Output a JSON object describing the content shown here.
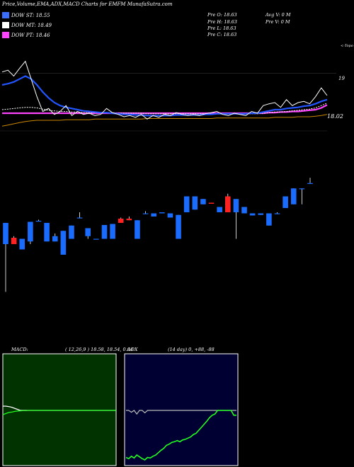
{
  "header": {
    "title": "Price,Volume,EMA,ADX,MACD Charts for EMFM MunafaSutra.com",
    "legend": [
      {
        "label": "DOW ST: 18.55",
        "color": "#3b6dff"
      },
      {
        "label": "DOW MT: 18.49",
        "color": "#ffffff"
      },
      {
        "label": "DOW PT: 18.46",
        "color": "#ff44ff"
      }
    ],
    "pv": {
      "prev_open": "Pre   O: 18.63",
      "prev_high": "Pre   H: 18.63",
      "prev_low": "Pre   L: 18.63",
      "prev_close": "Pre   C: 18.63",
      "avg_vol": "Avg V: 0   M",
      "prev_vol": "Pre   V: 0   M"
    }
  },
  "price_panel": {
    "label_top": "<-Topo",
    "label_19": "19",
    "label_last": "18.02",
    "ylim": [
      17.6,
      19.4
    ],
    "lines": {
      "close": [
        19.02,
        19.05,
        18.95,
        19.08,
        19.2,
        18.9,
        18.6,
        18.35,
        18.4,
        18.3,
        18.35,
        18.45,
        18.28,
        18.35,
        18.3,
        18.32,
        18.28,
        18.3,
        18.4,
        18.33,
        18.3,
        18.26,
        18.28,
        18.25,
        18.3,
        18.22,
        18.28,
        18.25,
        18.3,
        18.28,
        18.33,
        18.3,
        18.28,
        18.3,
        18.28,
        18.31,
        18.33,
        18.35,
        18.3,
        18.28,
        18.32,
        18.3,
        18.28,
        18.35,
        18.32,
        18.45,
        18.48,
        18.5,
        18.42,
        18.55,
        18.45,
        18.5,
        18.52,
        18.48,
        18.6,
        18.75,
        18.62
      ],
      "ema_short": [
        18.8,
        18.82,
        18.85,
        18.9,
        18.95,
        18.9,
        18.8,
        18.68,
        18.58,
        18.5,
        18.45,
        18.42,
        18.4,
        18.38,
        18.36,
        18.35,
        18.34,
        18.33,
        18.33,
        18.32,
        18.31,
        18.3,
        18.3,
        18.29,
        18.29,
        18.28,
        18.28,
        18.28,
        18.28,
        18.28,
        18.29,
        18.29,
        18.29,
        18.29,
        18.29,
        18.3,
        18.3,
        18.31,
        18.31,
        18.31,
        18.31,
        18.31,
        18.31,
        18.32,
        18.32,
        18.34,
        18.36,
        18.38,
        18.38,
        18.4,
        18.41,
        18.42,
        18.44,
        18.45,
        18.48,
        18.52,
        18.55
      ],
      "ema_mid": [
        18.38,
        18.39,
        18.4,
        18.41,
        18.42,
        18.42,
        18.41,
        18.39,
        18.37,
        18.36,
        18.35,
        18.35,
        18.34,
        18.34,
        18.33,
        18.33,
        18.33,
        18.33,
        18.33,
        18.33,
        18.32,
        18.32,
        18.32,
        18.32,
        18.32,
        18.31,
        18.31,
        18.31,
        18.31,
        18.31,
        18.31,
        18.31,
        18.31,
        18.31,
        18.31,
        18.31,
        18.31,
        18.31,
        18.31,
        18.31,
        18.31,
        18.31,
        18.31,
        18.31,
        18.31,
        18.32,
        18.33,
        18.34,
        18.34,
        18.35,
        18.36,
        18.37,
        18.38,
        18.39,
        18.41,
        18.45,
        18.49
      ],
      "ema_long": [
        18.32,
        18.32,
        18.32,
        18.32,
        18.32,
        18.32,
        18.32,
        18.32,
        18.32,
        18.32,
        18.32,
        18.32,
        18.32,
        18.32,
        18.32,
        18.32,
        18.32,
        18.32,
        18.32,
        18.32,
        18.32,
        18.32,
        18.32,
        18.32,
        18.32,
        18.32,
        18.32,
        18.32,
        18.32,
        18.32,
        18.32,
        18.32,
        18.32,
        18.32,
        18.32,
        18.32,
        18.32,
        18.32,
        18.32,
        18.32,
        18.32,
        18.32,
        18.32,
        18.32,
        18.32,
        18.32,
        18.33,
        18.33,
        18.34,
        18.34,
        18.35,
        18.35,
        18.36,
        18.37,
        18.38,
        18.41,
        18.46
      ],
      "ema_slow": [
        18.1,
        18.12,
        18.14,
        18.16,
        18.18,
        18.19,
        18.2,
        18.2,
        18.2,
        18.2,
        18.2,
        18.21,
        18.21,
        18.21,
        18.21,
        18.21,
        18.22,
        18.22,
        18.22,
        18.22,
        18.22,
        18.22,
        18.22,
        18.22,
        18.22,
        18.23,
        18.23,
        18.23,
        18.23,
        18.23,
        18.23,
        18.23,
        18.23,
        18.23,
        18.23,
        18.23,
        18.23,
        18.24,
        18.24,
        18.24,
        18.24,
        18.24,
        18.24,
        18.24,
        18.24,
        18.24,
        18.24,
        18.25,
        18.25,
        18.25,
        18.25,
        18.26,
        18.26,
        18.26,
        18.27,
        18.28,
        18.3
      ]
    },
    "colors": {
      "close": "#ffffff",
      "ema_short": "#2255ff",
      "ema_mid": "#ffffff",
      "ema_long": "#ff44ff",
      "ema_slow": "#cc8800"
    }
  },
  "chart_data": [
    {
      "type": "line",
      "title": "Price,Volume,EMA,ADX,MACD Charts for EMFM MunafaSutra.com",
      "series": [
        {
          "name": "DOW ST: 18.55"
        },
        {
          "name": "DOW MT: 18.49"
        },
        {
          "name": "DOW PT: 18.46"
        }
      ]
    },
    {
      "type": "bar",
      "candles": [
        {
          "o": 18.6,
          "c": 18.2,
          "h": 18.6,
          "l": 17.3,
          "up": false
        },
        {
          "o": 18.32,
          "c": 18.2,
          "h": 18.35,
          "l": 18.2,
          "up": true
        },
        {
          "o": 18.3,
          "c": 18.1,
          "h": 18.3,
          "l": 18.1,
          "up": false
        },
        {
          "o": 18.62,
          "c": 18.25,
          "h": 18.62,
          "l": 18.2,
          "up": false
        },
        {
          "o": 18.64,
          "c": 18.64,
          "h": 18.66,
          "l": 18.64,
          "up": false
        },
        {
          "o": 18.6,
          "c": 18.25,
          "h": 18.6,
          "l": 18.25,
          "up": false
        },
        {
          "o": 18.35,
          "c": 18.25,
          "h": 18.4,
          "l": 18.25,
          "up": false
        },
        {
          "o": 18.45,
          "c": 18.0,
          "h": 18.45,
          "l": 18.0,
          "up": false
        },
        {
          "o": 18.55,
          "c": 18.3,
          "h": 18.55,
          "l": 18.3,
          "up": false
        },
        {
          "o": 18.7,
          "c": 18.7,
          "h": 18.8,
          "l": 18.7,
          "up": false
        },
        {
          "o": 18.5,
          "c": 18.35,
          "h": 18.5,
          "l": 18.3,
          "up": false
        },
        {
          "o": 18.3,
          "c": 18.3,
          "h": 18.3,
          "l": 18.3,
          "up": false
        },
        {
          "o": 18.56,
          "c": 18.3,
          "h": 18.56,
          "l": 18.3,
          "up": false
        },
        {
          "o": 18.58,
          "c": 18.3,
          "h": 18.58,
          "l": 18.3,
          "up": false
        },
        {
          "o": 18.68,
          "c": 18.6,
          "h": 18.7,
          "l": 18.6,
          "up": true
        },
        {
          "o": 18.68,
          "c": 18.65,
          "h": 18.72,
          "l": 18.65,
          "up": true
        },
        {
          "o": 18.65,
          "c": 18.3,
          "h": 18.65,
          "l": 18.3,
          "up": false
        },
        {
          "o": 18.78,
          "c": 18.78,
          "h": 18.82,
          "l": 18.78,
          "up": false
        },
        {
          "o": 18.78,
          "c": 18.72,
          "h": 18.78,
          "l": 18.72,
          "up": false
        },
        {
          "o": 18.8,
          "c": 18.78,
          "h": 18.8,
          "l": 18.78,
          "up": false
        },
        {
          "o": 18.78,
          "c": 18.7,
          "h": 18.78,
          "l": 18.7,
          "up": false
        },
        {
          "o": 18.75,
          "c": 18.3,
          "h": 18.75,
          "l": 18.3,
          "up": false
        },
        {
          "o": 19.1,
          "c": 18.8,
          "h": 19.1,
          "l": 18.8,
          "up": false
        },
        {
          "o": 19.1,
          "c": 18.85,
          "h": 19.1,
          "l": 18.85,
          "up": false
        },
        {
          "o": 19.05,
          "c": 18.95,
          "h": 19.05,
          "l": 18.95,
          "up": false
        },
        {
          "o": 18.98,
          "c": 18.96,
          "h": 18.98,
          "l": 18.96,
          "up": true
        },
        {
          "o": 18.9,
          "c": 18.8,
          "h": 18.9,
          "l": 18.8,
          "up": false
        },
        {
          "o": 19.1,
          "c": 18.8,
          "h": 19.15,
          "l": 18.8,
          "up": true
        },
        {
          "o": 19.05,
          "c": 18.8,
          "h": 19.05,
          "l": 18.3,
          "up": false
        },
        {
          "o": 18.9,
          "c": 18.78,
          "h": 18.9,
          "l": 18.78,
          "up": false
        },
        {
          "o": 18.78,
          "c": 18.74,
          "h": 18.78,
          "l": 18.74,
          "up": false
        },
        {
          "o": 18.78,
          "c": 18.75,
          "h": 18.78,
          "l": 18.75,
          "up": false
        },
        {
          "o": 18.78,
          "c": 18.55,
          "h": 18.78,
          "l": 18.55,
          "up": false
        },
        {
          "o": 18.78,
          "c": 18.78,
          "h": 18.8,
          "l": 18.78,
          "up": false
        },
        {
          "o": 19.1,
          "c": 18.88,
          "h": 19.1,
          "l": 18.88,
          "up": false
        },
        {
          "o": 19.25,
          "c": 18.95,
          "h": 19.25,
          "l": 18.95,
          "up": false
        },
        {
          "o": 19.25,
          "c": 19.25,
          "h": 19.25,
          "l": 18.95,
          "up": false
        },
        {
          "o": 19.35,
          "c": 19.35,
          "h": 19.45,
          "l": 19.35,
          "up": false
        }
      ]
    },
    {
      "type": "line",
      "title": "MACD:",
      "subtitle": "( 12,26,9 ) 18.58, 18.54, 0.04",
      "series": [
        {
          "values": [
            0.5,
            0.5,
            0.48,
            0.45,
            0.4,
            0.35,
            0.3,
            0.3,
            0.3,
            0.3,
            0.3,
            0.3,
            0.3,
            0.3,
            0.3,
            0.3,
            0.3,
            0.3,
            0.3,
            0.3,
            0.3,
            0.3,
            0.3,
            0.3,
            0.3,
            0.3,
            0.3,
            0.3,
            0.3,
            0.3,
            0.3,
            0.3,
            0.3,
            0.3,
            0.3,
            0.3,
            0.3,
            0.3,
            0.3,
            0.3
          ]
        },
        {
          "values": [
            0.1,
            0.15,
            0.2,
            0.22,
            0.25,
            0.27,
            0.28,
            0.29,
            0.29,
            0.3,
            0.3,
            0.3,
            0.3,
            0.3,
            0.3,
            0.3,
            0.3,
            0.3,
            0.3,
            0.3,
            0.3,
            0.3,
            0.3,
            0.3,
            0.3,
            0.3,
            0.3,
            0.3,
            0.3,
            0.3,
            0.3,
            0.3,
            0.3,
            0.3,
            0.3,
            0.3,
            0.3,
            0.3,
            0.3,
            0.3
          ]
        }
      ]
    },
    {
      "type": "line",
      "title": "ADX",
      "subtitle": "(14 day) 0, +88, -88",
      "series": [
        {
          "values": [
            88,
            88,
            85,
            88,
            82,
            88,
            88,
            84,
            88,
            88,
            88,
            88,
            88,
            88,
            88,
            88,
            88,
            88,
            88,
            88,
            88,
            88,
            88,
            88,
            88,
            88,
            88,
            88,
            88,
            88,
            88,
            88,
            88,
            88,
            88,
            88,
            88,
            88,
            88,
            88,
            88,
            88
          ]
        },
        {
          "values": [
            10,
            8,
            12,
            9,
            14,
            11,
            8,
            6,
            10,
            9,
            12,
            14,
            18,
            22,
            25,
            30,
            32,
            35,
            36,
            38,
            36,
            39,
            40,
            42,
            44,
            48,
            50,
            55,
            60,
            65,
            70,
            76,
            80,
            82,
            88,
            88,
            88,
            88,
            88,
            88,
            80,
            80
          ]
        }
      ]
    }
  ]
}
